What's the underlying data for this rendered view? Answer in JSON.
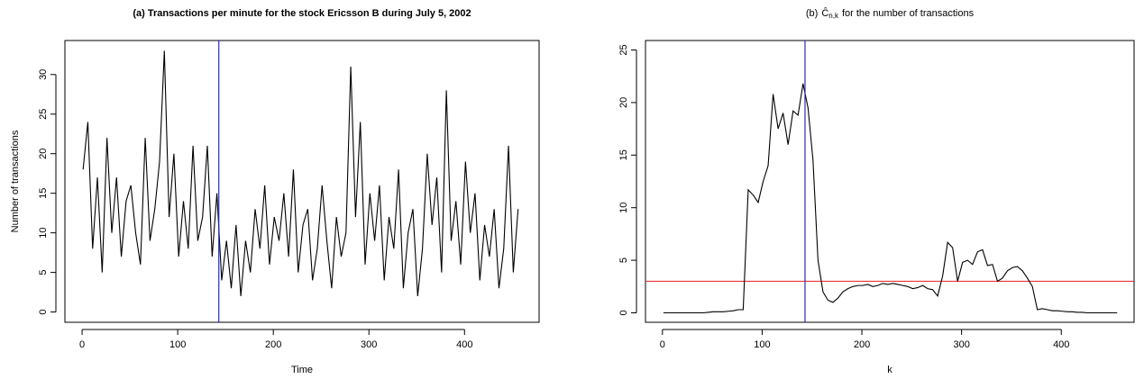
{
  "chart_data": [
    {
      "type": "line",
      "title": "(a) Transactions per minute for the stock Ericsson B during July 5, 2002",
      "title_bold": true,
      "x_label": "Time",
      "y_label": "Number of transactions",
      "x": [
        1,
        6,
        11,
        16,
        21,
        26,
        31,
        36,
        41,
        46,
        51,
        56,
        61,
        66,
        71,
        76,
        81,
        86,
        91,
        96,
        101,
        106,
        111,
        116,
        121,
        126,
        131,
        136,
        141,
        146,
        151,
        156,
        161,
        166,
        171,
        176,
        181,
        186,
        191,
        196,
        201,
        206,
        211,
        216,
        221,
        226,
        231,
        236,
        241,
        246,
        251,
        256,
        261,
        266,
        271,
        276,
        281,
        286,
        291,
        296,
        301,
        306,
        311,
        316,
        321,
        326,
        331,
        336,
        341,
        346,
        351,
        356,
        361,
        366,
        371,
        376,
        381,
        386,
        391,
        396,
        401,
        406,
        411,
        416,
        421,
        426,
        431,
        436,
        441,
        446,
        451,
        456
      ],
      "series": [
        {
          "color": "#000000",
          "values": [
            18,
            24,
            8,
            17,
            5,
            22,
            10,
            17,
            7,
            14,
            16,
            10,
            6,
            22,
            9,
            13,
            19,
            33,
            12,
            20,
            7,
            14,
            8,
            21,
            9,
            12,
            21,
            7,
            15,
            4,
            9,
            3,
            11,
            2,
            9,
            5,
            13,
            8,
            16,
            6,
            12,
            9,
            15,
            7,
            18,
            5,
            11,
            13,
            4,
            8,
            16,
            9,
            3,
            12,
            7,
            10,
            31,
            12,
            24,
            6,
            15,
            9,
            16,
            4,
            12,
            8,
            18,
            3,
            10,
            13,
            2,
            8,
            20,
            11,
            17,
            5,
            28,
            9,
            14,
            6,
            19,
            10,
            15,
            4,
            11,
            7,
            13,
            3,
            8,
            21,
            5,
            13
          ]
        }
      ],
      "vlines": [
        {
          "value": 143,
          "color": "#2b2bb0"
        }
      ],
      "hlines": [],
      "xlim": [
        -18,
        478
      ],
      "ylim": [
        -1.3,
        34.3
      ],
      "xticks": [
        0,
        100,
        200,
        300,
        400
      ],
      "yticks": [
        0,
        5,
        10,
        15,
        20,
        25,
        30
      ]
    },
    {
      "type": "line",
      "title": {
        "prefix": "(b)",
        "symbol": "Ĉ",
        "subscript": "n,k",
        "suffix": "for the number of transactions"
      },
      "title_bold": false,
      "x_label": "k",
      "x": [
        1,
        6,
        11,
        16,
        21,
        26,
        31,
        36,
        41,
        46,
        51,
        56,
        61,
        66,
        71,
        76,
        81,
        86,
        91,
        96,
        101,
        106,
        111,
        116,
        121,
        126,
        131,
        136,
        141,
        146,
        151,
        156,
        161,
        166,
        171,
        176,
        181,
        186,
        191,
        196,
        201,
        206,
        211,
        216,
        221,
        226,
        231,
        236,
        241,
        246,
        251,
        256,
        261,
        266,
        271,
        276,
        281,
        286,
        291,
        296,
        301,
        306,
        311,
        316,
        321,
        326,
        331,
        336,
        341,
        346,
        351,
        356,
        361,
        366,
        371,
        376,
        381,
        386,
        391,
        396,
        401,
        406,
        411,
        416,
        421,
        426,
        431,
        436,
        441,
        446,
        451,
        456
      ],
      "series": [
        {
          "color": "#000000",
          "values": [
            0,
            0,
            0,
            0,
            0,
            0,
            0,
            0,
            0,
            0.05,
            0.1,
            0.1,
            0.1,
            0.15,
            0.2,
            0.3,
            0.3,
            11.7,
            11.2,
            10.5,
            12.5,
            14,
            20.8,
            17.5,
            19,
            16,
            19.2,
            18.8,
            21.8,
            19.5,
            14.5,
            5,
            2,
            1.2,
            1.0,
            1.4,
            2.0,
            2.3,
            2.5,
            2.6,
            2.6,
            2.7,
            2.5,
            2.6,
            2.8,
            2.7,
            2.8,
            2.7,
            2.6,
            2.5,
            2.3,
            2.4,
            2.6,
            2.3,
            2.2,
            1.6,
            3.5,
            6.7,
            6.2,
            3.0,
            4.8,
            5.0,
            4.6,
            5.8,
            6.0,
            4.5,
            4.6,
            3.0,
            3.3,
            4.0,
            4.3,
            4.4,
            4.0,
            3.3,
            2.5,
            0.3,
            0.4,
            0.3,
            0.2,
            0.2,
            0.15,
            0.1,
            0.1,
            0.05,
            0.05,
            0,
            0,
            0,
            0,
            0,
            0,
            0
          ]
        }
      ],
      "vlines": [
        {
          "value": 143,
          "color": "#2b2bb0"
        }
      ],
      "hlines": [
        {
          "value": 3,
          "color": "#e8383b"
        }
      ],
      "xlim": [
        -17,
        473
      ],
      "ylim": [
        -0.9,
        25.9
      ],
      "xticks": [
        0,
        100,
        200,
        300,
        400
      ],
      "yticks": [
        0,
        5,
        10,
        15,
        20,
        25
      ]
    }
  ]
}
